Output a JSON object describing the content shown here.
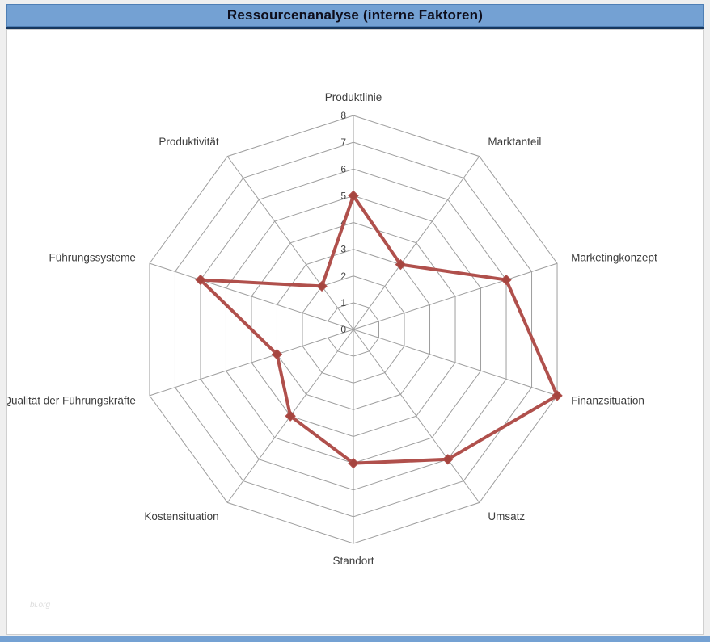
{
  "header": {
    "title": "Ressourcenanalyse (interne Faktoren)"
  },
  "footer": {
    "watermark": "bl.org"
  },
  "colors": {
    "title_bar_bg": "#74A1D3",
    "title_underline": "#17375E",
    "bottom_bar_bg": "#74A1D3",
    "series_line": "#B0504C",
    "marker_fill": "#A6453F",
    "grid_line": "#9E9E9E",
    "chart_bg": "#FFFFFF",
    "page_bg": "#EFEFEF"
  },
  "chart_data": {
    "type": "radar",
    "title": "Ressourcenanalyse (interne Faktoren)",
    "categories": [
      "Produktlinie",
      "Marktanteil",
      "Marketingkonzept",
      "Finanzsituation",
      "Umsatz",
      "Standort",
      "Kostensituation",
      "Qualität der Führungskräfte",
      "Führungssysteme",
      "Produktivität"
    ],
    "values": [
      5,
      3,
      6,
      8,
      6,
      5,
      4,
      3,
      6,
      2
    ],
    "axis_min": 0,
    "axis_max": 8,
    "axis_ticks": [
      0,
      1,
      2,
      3,
      4,
      5,
      6,
      7,
      8
    ],
    "grid": true,
    "legend": "none",
    "marker": "diamond"
  }
}
